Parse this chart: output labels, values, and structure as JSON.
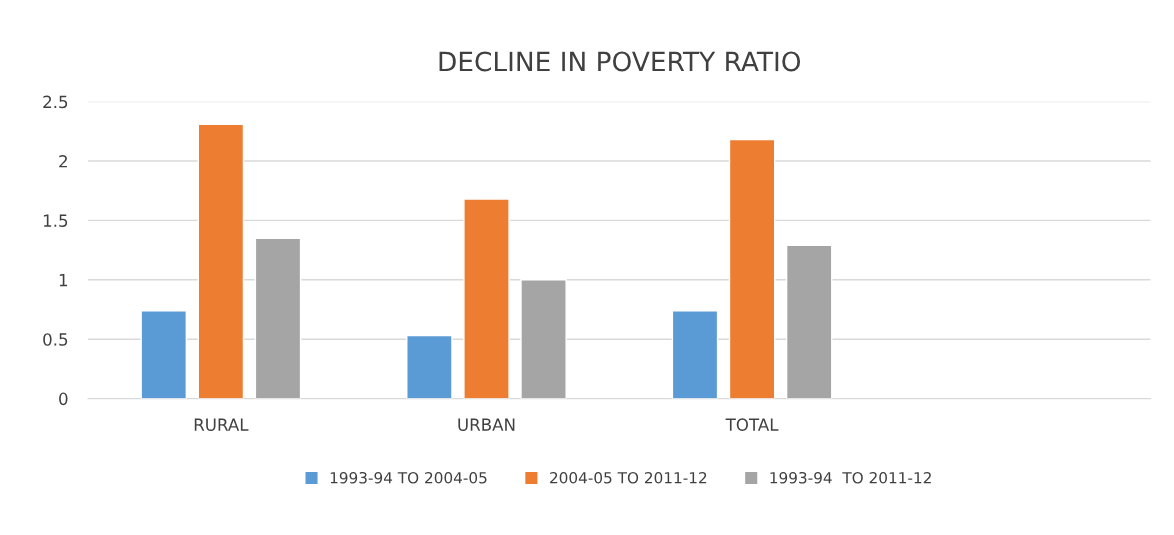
{
  "chart_data": {
    "type": "bar",
    "title": "DECLINE IN POVERTY RATIO",
    "categories": [
      "RURAL",
      "URBAN",
      "TOTAL",
      null
    ],
    "series": [
      {
        "name": "1993-94 TO 2004-05",
        "color": "#5b9bd5",
        "values": [
          0.74,
          0.53,
          0.74,
          null
        ]
      },
      {
        "name": "2004-05 TO 2011-12",
        "color": "#ed7d31",
        "values": [
          2.31,
          1.68,
          2.18,
          null
        ]
      },
      {
        "name": "1993-94  TO 2011-12",
        "color": "#a5a5a5",
        "values": [
          1.35,
          1.0,
          1.29,
          null
        ]
      }
    ],
    "ylim": [
      0,
      2.5
    ],
    "yticks": [
      0,
      0.5,
      1,
      1.5,
      2,
      2.5
    ],
    "grid": "y",
    "legend": "bottom"
  }
}
